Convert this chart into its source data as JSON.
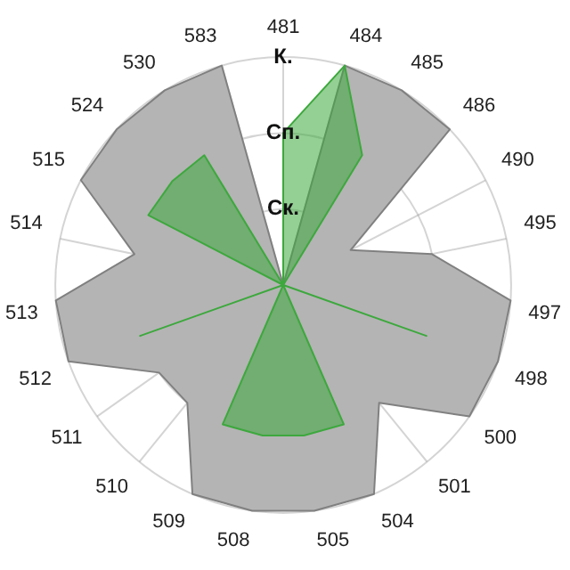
{
  "chart_data": {
    "type": "radar",
    "categories": [
      "481",
      "484",
      "485",
      "486",
      "490",
      "495",
      "497",
      "498",
      "500",
      "501",
      "504",
      "505",
      "508",
      "509",
      "510",
      "511",
      "512",
      "513",
      "514",
      "515",
      "524",
      "530",
      "583"
    ],
    "series": [
      {
        "color": "#b4b4b4",
        "values": [
          0,
          3,
          3,
          3,
          1,
          2,
          3,
          3,
          3,
          2,
          3,
          3,
          3,
          3,
          2,
          2,
          3,
          3,
          2,
          3,
          3,
          3,
          3
        ]
      },
      {
        "color": "#3da83d",
        "values": [
          2,
          3,
          2,
          0,
          0,
          0,
          0,
          2,
          0,
          0,
          2,
          2,
          2,
          2,
          0,
          0,
          2,
          0,
          0,
          2,
          2,
          2,
          0
        ]
      }
    ],
    "ylim": [
      0,
      3
    ],
    "yticks": [
      {
        "value": 1,
        "label": "Ск."
      },
      {
        "value": 2,
        "label": "Сп."
      },
      {
        "value": 3,
        "label": "К."
      }
    ],
    "grid": true,
    "legend": false
  }
}
